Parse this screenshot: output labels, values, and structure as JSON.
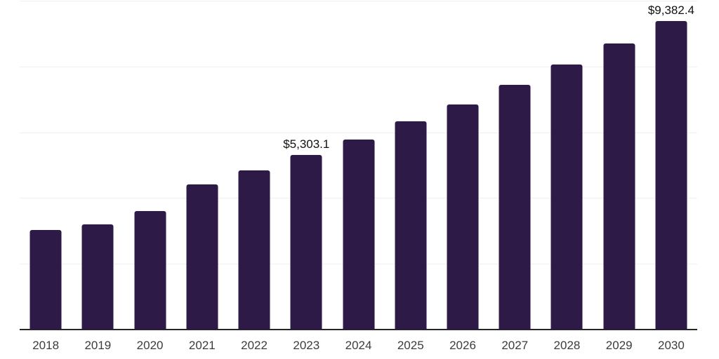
{
  "chart_data": {
    "type": "bar",
    "title": "",
    "xlabel": "",
    "ylabel": "",
    "ylim": [
      0,
      10000
    ],
    "gridline_step": 2000,
    "gridlines_visible": true,
    "legend": "none",
    "bar_color": "#2e1a47",
    "axis_color": "#262626",
    "gridline_color": "#f0f0f0",
    "value_label_color": "#111111",
    "tick_label_color": "#3c3c3c",
    "categories": [
      "2018",
      "2019",
      "2020",
      "2021",
      "2022",
      "2023",
      "2024",
      "2025",
      "2026",
      "2027",
      "2028",
      "2029",
      "2030"
    ],
    "values": [
      3025,
      3195,
      3600,
      4410,
      4835,
      5303.1,
      5775,
      6330,
      6840,
      7435,
      8055,
      8695,
      9382.4
    ],
    "value_labels": [
      "",
      "",
      "",
      "",
      "",
      "$5,303.1",
      "",
      "",
      "",
      "",
      "",
      "",
      "$9,382.4"
    ]
  }
}
